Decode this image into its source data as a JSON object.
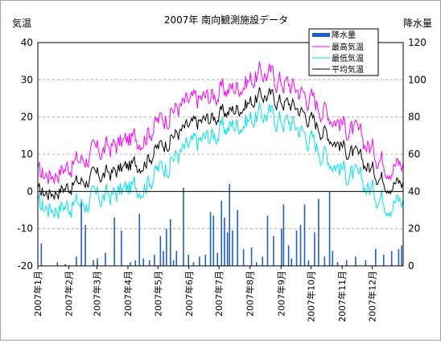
{
  "chart_data": {
    "type": "line+bar",
    "title": "2007年 南向観測施設データ",
    "ylabel_left": "気温",
    "ylabel_right": "降水量",
    "y_left": {
      "min": -20,
      "max": 40,
      "ticks": [
        "-20",
        "-10",
        "0",
        "10",
        "20",
        "30",
        "40"
      ]
    },
    "y_right": {
      "min": 0,
      "max": 120,
      "ticks": [
        "0",
        "20",
        "40",
        "60",
        "80",
        "100",
        "120"
      ]
    },
    "x": {
      "start": "2007-01-01",
      "end": "2007-12-31"
    },
    "x_ticks": [
      "2007年1月",
      "2007年2月",
      "2007年3月",
      "2007年4月",
      "2007年5月",
      "2007年6月",
      "2007年7月",
      "2007年8月",
      "2007年9月",
      "2007年10月",
      "2007年11月",
      "2007年12月"
    ],
    "grid": true,
    "legend": {
      "position": "top-right",
      "entries": [
        "降水量",
        "最高気温",
        "最低気温",
        "平均気温"
      ]
    },
    "colors": {
      "precip": "#1f5fc8",
      "max": "#ff00ff",
      "min": "#00e5ee",
      "avg": "#000000"
    },
    "series": [
      {
        "name": "最高気温",
        "axis": "left",
        "kind": "line",
        "monthly_mean": [
          5,
          9,
          12,
          15,
          22,
          25,
          28,
          32,
          28,
          22,
          15,
          8
        ],
        "unit": "°C"
      },
      {
        "name": "平均気温",
        "axis": "left",
        "kind": "line",
        "monthly_mean": [
          0,
          3,
          5,
          8,
          15,
          19,
          22,
          26,
          23,
          16,
          9,
          3
        ],
        "unit": "°C"
      },
      {
        "name": "最低気温",
        "axis": "left",
        "kind": "line",
        "monthly_mean": [
          -4,
          -3,
          -1,
          2,
          9,
          14,
          18,
          21,
          18,
          10,
          3,
          -2
        ],
        "unit": "°C"
      },
      {
        "name": "降水量",
        "axis": "right",
        "kind": "bar",
        "events": [
          [
            "2007-01-04",
            12
          ],
          [
            "2007-01-20",
            2
          ],
          [
            "2007-01-28",
            1
          ],
          [
            "2007-02-08",
            5
          ],
          [
            "2007-02-13",
            34
          ],
          [
            "2007-02-17",
            22
          ],
          [
            "2007-02-25",
            3
          ],
          [
            "2007-03-01",
            4
          ],
          [
            "2007-03-09",
            7
          ],
          [
            "2007-03-18",
            26
          ],
          [
            "2007-03-25",
            19
          ],
          [
            "2007-04-03",
            2
          ],
          [
            "2007-04-08",
            3
          ],
          [
            "2007-04-12",
            28
          ],
          [
            "2007-04-16",
            4
          ],
          [
            "2007-04-22",
            3
          ],
          [
            "2007-04-27",
            6
          ],
          [
            "2007-05-03",
            16
          ],
          [
            "2007-05-06",
            8
          ],
          [
            "2007-05-09",
            20
          ],
          [
            "2007-05-13",
            25
          ],
          [
            "2007-05-16",
            3
          ],
          [
            "2007-05-19",
            8
          ],
          [
            "2007-05-26",
            42
          ],
          [
            "2007-05-31",
            6
          ],
          [
            "2007-06-05",
            2
          ],
          [
            "2007-06-11",
            5
          ],
          [
            "2007-06-17",
            6
          ],
          [
            "2007-06-22",
            29
          ],
          [
            "2007-06-25",
            27
          ],
          [
            "2007-06-29",
            7
          ],
          [
            "2007-07-03",
            35
          ],
          [
            "2007-07-06",
            26
          ],
          [
            "2007-07-09",
            18
          ],
          [
            "2007-07-11",
            44
          ],
          [
            "2007-07-14",
            19
          ],
          [
            "2007-07-19",
            30
          ],
          [
            "2007-07-25",
            9
          ],
          [
            "2007-08-02",
            10
          ],
          [
            "2007-08-07",
            2
          ],
          [
            "2007-08-13",
            5
          ],
          [
            "2007-08-18",
            27
          ],
          [
            "2007-08-24",
            16
          ],
          [
            "2007-09-01",
            20
          ],
          [
            "2007-09-03",
            33
          ],
          [
            "2007-09-08",
            11
          ],
          [
            "2007-09-11",
            4
          ],
          [
            "2007-09-16",
            19
          ],
          [
            "2007-09-20",
            22
          ],
          [
            "2007-09-24",
            33
          ],
          [
            "2007-09-28",
            3
          ],
          [
            "2007-10-04",
            18
          ],
          [
            "2007-10-08",
            36
          ],
          [
            "2007-10-14",
            5
          ],
          [
            "2007-10-19",
            40
          ],
          [
            "2007-10-22",
            8
          ],
          [
            "2007-10-27",
            2
          ],
          [
            "2007-11-05",
            3
          ],
          [
            "2007-11-14",
            5
          ],
          [
            "2007-11-24",
            3
          ],
          [
            "2007-12-04",
            9
          ],
          [
            "2007-12-12",
            6
          ],
          [
            "2007-12-20",
            8
          ],
          [
            "2007-12-27",
            9
          ],
          [
            "2007-12-30",
            11
          ]
        ]
      }
    ]
  }
}
